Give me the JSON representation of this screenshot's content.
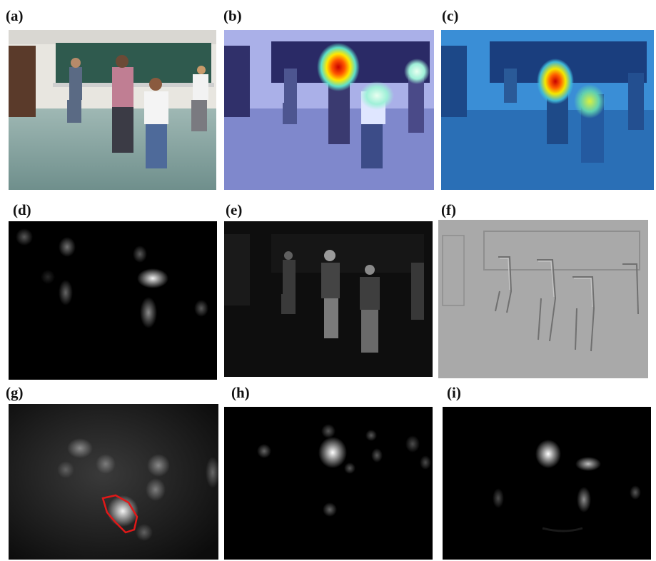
{
  "figure": {
    "panels": [
      {
        "id": "a",
        "label": "(a)",
        "content": "original classroom scene with walking people"
      },
      {
        "id": "b",
        "label": "(b)",
        "content": "heat map overlay on scene (blue tint, red hotspot)"
      },
      {
        "id": "c",
        "label": "(c)",
        "content": "heat map overlay on scene (blue tint, red hotspot)"
      },
      {
        "id": "d",
        "label": "(d)",
        "content": "saliency map with faint blobs"
      },
      {
        "id": "e",
        "label": "(e)",
        "content": "dark grayscale scene"
      },
      {
        "id": "f",
        "label": "(f)",
        "content": "grey edge/relief image"
      },
      {
        "id": "g",
        "label": "(g)",
        "content": "saliency map with red contour region"
      },
      {
        "id": "h",
        "label": "(h)",
        "content": "saliency map with bright blobs"
      },
      {
        "id": "i",
        "label": "(i)",
        "content": "saliency map with bright blobs"
      }
    ]
  }
}
